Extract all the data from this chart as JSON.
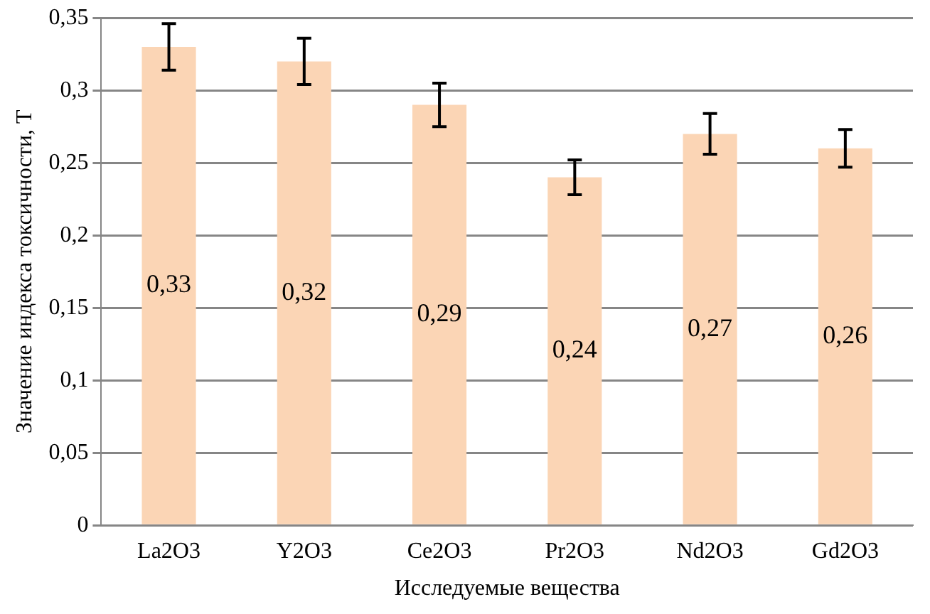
{
  "chart_data": {
    "type": "bar",
    "xlabel": "Исследуемые вещества",
    "ylabel": "Значение индекса токсичности, Т",
    "categories": [
      "La2O3",
      "Y2O3",
      "Ce2O3",
      "Pr2O3",
      "Nd2O3",
      "Gd2O3"
    ],
    "values": [
      0.33,
      0.32,
      0.29,
      0.24,
      0.27,
      0.26
    ],
    "errors": [
      0.016,
      0.016,
      0.015,
      0.012,
      0.014,
      0.013
    ],
    "value_labels": [
      "0,33",
      "0,32",
      "0,29",
      "0,24",
      "0,27",
      "0,26"
    ],
    "color": "#fbd5b5",
    "ylim": [
      0,
      0.35
    ],
    "yticks": [
      0,
      {
        "value": 0.05,
        "label": "0,05"
      },
      {
        "value": 0.1,
        "label": "0,1"
      },
      {
        "value": 0.15,
        "label": "0,15"
      },
      {
        "value": 0.2,
        "label": "0,2"
      },
      {
        "value": 0.25,
        "label": "0,25"
      },
      {
        "value": 0.3,
        "label": "0,3"
      },
      {
        "value": 0.35,
        "label": "0,35"
      }
    ],
    "grid": "y",
    "legend": false
  }
}
